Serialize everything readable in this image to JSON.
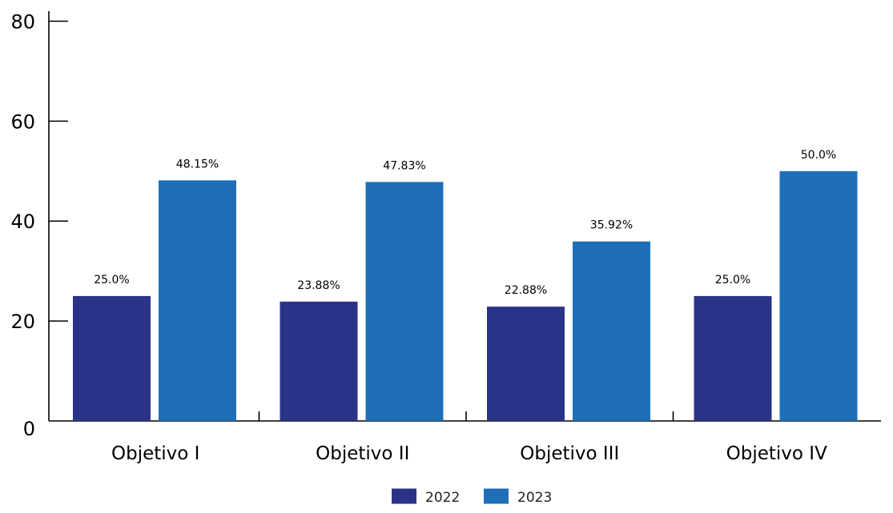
{
  "chart_data": {
    "type": "bar",
    "title": "",
    "xlabel": "",
    "ylabel": "",
    "categories": [
      "Objetivo I",
      "Objetivo II",
      "Objetivo III",
      "Objetivo IV"
    ],
    "series": [
      {
        "name": "2022",
        "color": "#2b3388",
        "values": [
          25.0,
          23.88,
          22.88,
          25.0
        ],
        "labels": [
          "25.0%",
          "23.88%",
          "22.88%",
          "25.0%"
        ]
      },
      {
        "name": "2023",
        "color": "#1f6fb8",
        "values": [
          48.15,
          47.83,
          35.92,
          50.0
        ],
        "labels": [
          "48.15%",
          "47.83%",
          "35.92%",
          "50.0%"
        ]
      }
    ],
    "ylim": [
      0,
      82
    ],
    "yticks": [
      0,
      20,
      40,
      60,
      80
    ],
    "ytick_labels": [
      "0",
      "20",
      "40",
      "60",
      "80"
    ],
    "grid": false,
    "legend_position": "bottom-center"
  }
}
